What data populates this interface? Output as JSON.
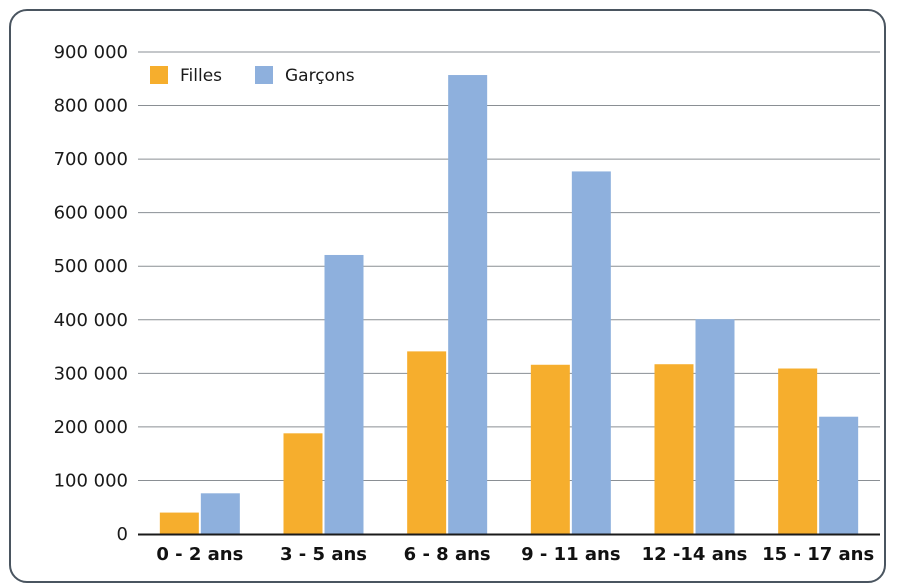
{
  "chart_data": {
    "type": "bar",
    "categories": [
      "0 - 2 ans",
      "3 - 5 ans",
      "6 - 8 ans",
      "9 - 11 ans",
      "12 -14 ans",
      "15 - 17 ans"
    ],
    "series": [
      {
        "name": "Filles",
        "values": [
          40000,
          188000,
          341000,
          316000,
          317000,
          309000
        ],
        "color": "#f6ae2d"
      },
      {
        "name": "Garçons",
        "values": [
          76000,
          521000,
          857000,
          677000,
          401000,
          219000
        ],
        "color": "#8eb0dd"
      }
    ],
    "ylim": [
      0,
      900000
    ],
    "yticks": [
      0,
      100000,
      200000,
      300000,
      400000,
      500000,
      600000,
      700000,
      800000,
      900000
    ],
    "ytick_labels": [
      "0",
      "100 000",
      "200 000",
      "300 000",
      "400 000",
      "500 000",
      "600 000",
      "700 000",
      "800 000",
      "900 000"
    ],
    "grid": true,
    "legend_position": "top-left",
    "title": "",
    "xlabel": "",
    "ylabel": ""
  }
}
